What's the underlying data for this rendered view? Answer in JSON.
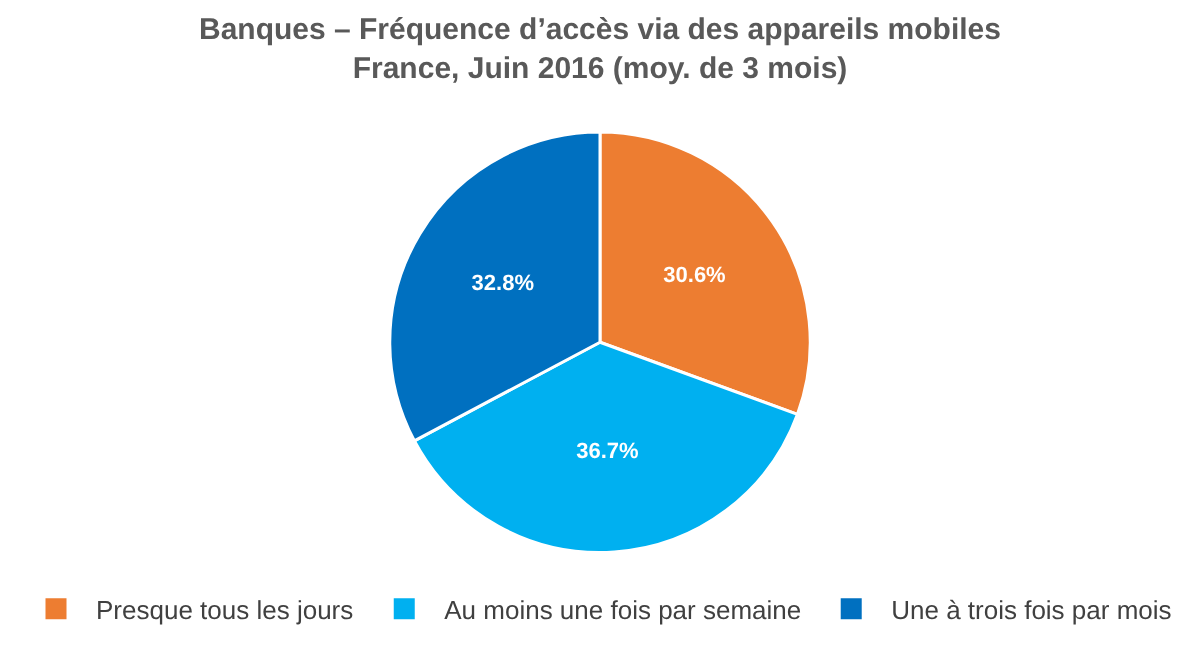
{
  "chart_data": {
    "type": "pie",
    "title": "Banques – Fréquence d’accès via des appareils mobiles",
    "subtitle": "France, Juin 2016 (moy. de 3 mois)",
    "categories": [
      "Presque tous les jours",
      "Au moins une fois par semaine",
      "Une à trois fois par mois"
    ],
    "values": [
      30.6,
      36.7,
      32.8
    ],
    "value_labels": [
      "30.6%",
      "36.7%",
      "32.8%"
    ],
    "colors": [
      "#ed7d31",
      "#00b0f0",
      "#0070c0"
    ],
    "legend": "bottom"
  }
}
